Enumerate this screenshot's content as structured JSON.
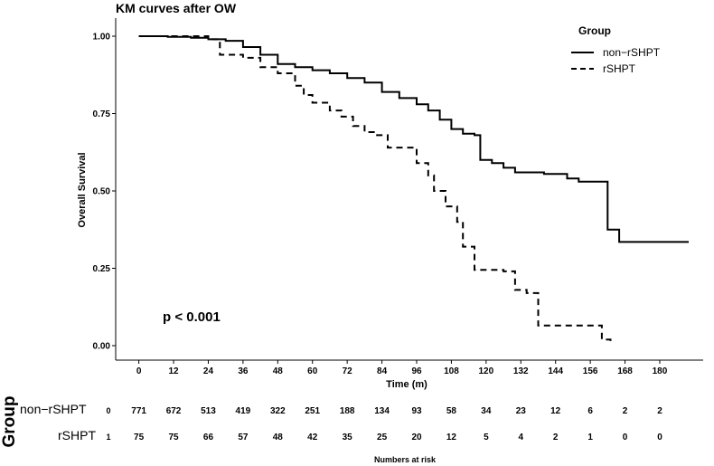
{
  "chart_data": {
    "type": "line",
    "title": "KM curves after OW",
    "xlabel": "Time (m)",
    "ylabel": "Overall Survival",
    "xlim": [
      -8,
      195
    ],
    "ylim": [
      0,
      1
    ],
    "x_ticks": [
      "0",
      "12",
      "24",
      "36",
      "48",
      "60",
      "72",
      "84",
      "96",
      "108",
      "120",
      "132",
      "144",
      "156",
      "168",
      "180"
    ],
    "y_ticks": [
      "0.00",
      "0.25",
      "0.50",
      "0.75",
      "1.00"
    ],
    "legend": {
      "title": "Group",
      "placement": "top-right"
    },
    "grid": false,
    "annotation": "p < 0.001",
    "series": [
      {
        "name": "non−rSHPT",
        "style": "solid",
        "points": [
          [
            0,
            1.0
          ],
          [
            10,
            0.998
          ],
          [
            18,
            0.995
          ],
          [
            24,
            0.99
          ],
          [
            30,
            0.985
          ],
          [
            36,
            0.965
          ],
          [
            42,
            0.94
          ],
          [
            48,
            0.91
          ],
          [
            54,
            0.9
          ],
          [
            60,
            0.89
          ],
          [
            66,
            0.88
          ],
          [
            72,
            0.865
          ],
          [
            78,
            0.85
          ],
          [
            84,
            0.82
          ],
          [
            90,
            0.8
          ],
          [
            96,
            0.78
          ],
          [
            100,
            0.76
          ],
          [
            104,
            0.73
          ],
          [
            108,
            0.7
          ],
          [
            112,
            0.685
          ],
          [
            116,
            0.68
          ],
          [
            118,
            0.6
          ],
          [
            122,
            0.59
          ],
          [
            126,
            0.575
          ],
          [
            130,
            0.56
          ],
          [
            140,
            0.555
          ],
          [
            148,
            0.54
          ],
          [
            152,
            0.53
          ],
          [
            162,
            0.375
          ],
          [
            166,
            0.335
          ],
          [
            190,
            0.335
          ]
        ]
      },
      {
        "name": "rSHPT",
        "style": "dashed",
        "points": [
          [
            0,
            1.0
          ],
          [
            12,
            1.0
          ],
          [
            24,
            0.99
          ],
          [
            28,
            0.94
          ],
          [
            36,
            0.93
          ],
          [
            42,
            0.9
          ],
          [
            48,
            0.88
          ],
          [
            54,
            0.84
          ],
          [
            57,
            0.81
          ],
          [
            60,
            0.785
          ],
          [
            66,
            0.76
          ],
          [
            70,
            0.74
          ],
          [
            74,
            0.71
          ],
          [
            78,
            0.69
          ],
          [
            82,
            0.68
          ],
          [
            86,
            0.64
          ],
          [
            90,
            0.64
          ],
          [
            96,
            0.59
          ],
          [
            100,
            0.55
          ],
          [
            102,
            0.5
          ],
          [
            106,
            0.45
          ],
          [
            110,
            0.4
          ],
          [
            112,
            0.32
          ],
          [
            116,
            0.245
          ],
          [
            126,
            0.24
          ],
          [
            130,
            0.18
          ],
          [
            134,
            0.17
          ],
          [
            138,
            0.065
          ],
          [
            156,
            0.065
          ],
          [
            160,
            0.02
          ],
          [
            163,
            0.015
          ]
        ]
      }
    ],
    "risk_table": {
      "title": "Numbers at risk",
      "group_label": "Group",
      "rows": [
        {
          "label": "non−rSHPT",
          "code": "0",
          "values": [
            "771",
            "672",
            "513",
            "419",
            "322",
            "251",
            "188",
            "134",
            "93",
            "58",
            "34",
            "23",
            "12",
            "6",
            "2",
            "2"
          ]
        },
        {
          "label": "rSHPT",
          "code": "1",
          "values": [
            "75",
            "75",
            "66",
            "57",
            "48",
            "42",
            "35",
            "25",
            "20",
            "12",
            "5",
            "4",
            "2",
            "1",
            "0",
            "0"
          ]
        }
      ]
    }
  }
}
